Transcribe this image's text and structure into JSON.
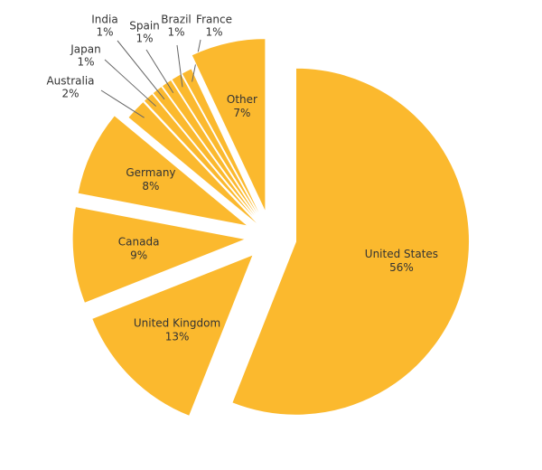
{
  "chart_data": {
    "type": "pie",
    "categories": [
      "United States",
      "United Kingdom",
      "Canada",
      "Germany",
      "Australia",
      "Japan",
      "India",
      "Spain",
      "Brazil",
      "France",
      "Other"
    ],
    "values": [
      56,
      13,
      9,
      8,
      2,
      1,
      1,
      1,
      1,
      1,
      7
    ],
    "value_labels": [
      "56%",
      "13%",
      "9%",
      "8%",
      "2%",
      "1%",
      "1%",
      "1%",
      "1%",
      "1%",
      "7%"
    ],
    "color": "#fbb92e"
  }
}
